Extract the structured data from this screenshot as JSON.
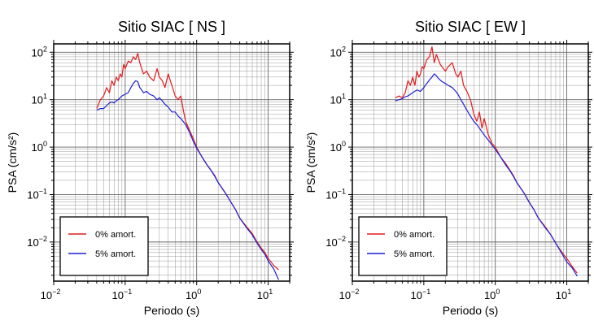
{
  "chart_data": [
    {
      "type": "line",
      "title": "Sitio SIAC [ NS ]",
      "xlabel": "Periodo (s)",
      "ylabel": "PSA (cm/s²)",
      "x_scale": "log",
      "y_scale": "log",
      "xlim": [
        0.01,
        20
      ],
      "ylim": [
        0.0015,
        150
      ],
      "grid": true,
      "legend_position": "bottom-left",
      "x_ticks": [
        {
          "base": "10",
          "exp": "−2"
        },
        {
          "base": "10",
          "exp": "−1"
        },
        {
          "base": "10",
          "exp": "0"
        },
        {
          "base": "10",
          "exp": "1"
        }
      ],
      "y_ticks": [
        {
          "base": "10",
          "exp": "−2"
        },
        {
          "base": "10",
          "exp": "−1"
        },
        {
          "base": "10",
          "exp": "0"
        },
        {
          "base": "10",
          "exp": "1"
        },
        {
          "base": "10",
          "exp": "2"
        }
      ],
      "series": [
        {
          "name": "0% amort.",
          "color": "#e41a1c",
          "x": [
            0.04,
            0.045,
            0.05,
            0.055,
            0.06,
            0.065,
            0.07,
            0.075,
            0.08,
            0.085,
            0.09,
            0.095,
            0.1,
            0.11,
            0.12,
            0.13,
            0.14,
            0.15,
            0.16,
            0.17,
            0.18,
            0.2,
            0.22,
            0.25,
            0.28,
            0.3,
            0.33,
            0.36,
            0.4,
            0.45,
            0.5,
            0.55,
            0.6,
            0.65,
            0.7,
            0.8,
            0.9,
            1.0,
            1.2,
            1.4,
            1.6,
            1.8,
            2.0,
            2.5,
            3.0,
            3.5,
            4.0,
            5.0,
            6.0,
            7.0,
            8.0,
            9.0,
            10.0,
            12.0,
            14.0
          ],
          "y": [
            6.5,
            10,
            12,
            18,
            14,
            25,
            20,
            30,
            25,
            35,
            30,
            55,
            45,
            65,
            60,
            80,
            70,
            95,
            60,
            45,
            35,
            40,
            30,
            25,
            45,
            30,
            25,
            18,
            35,
            20,
            12,
            10,
            12,
            6,
            3.5,
            2.2,
            1.5,
            1.0,
            0.6,
            0.42,
            0.32,
            0.25,
            0.18,
            0.11,
            0.07,
            0.048,
            0.032,
            0.021,
            0.015,
            0.01,
            0.0075,
            0.006,
            0.0045,
            0.0032,
            0.0026
          ]
        },
        {
          "name": "5% amort.",
          "color": "#1f1fd6",
          "x": [
            0.04,
            0.045,
            0.05,
            0.055,
            0.06,
            0.065,
            0.07,
            0.075,
            0.08,
            0.09,
            0.1,
            0.11,
            0.12,
            0.13,
            0.14,
            0.15,
            0.16,
            0.17,
            0.18,
            0.2,
            0.22,
            0.25,
            0.28,
            0.3,
            0.33,
            0.36,
            0.4,
            0.45,
            0.5,
            0.55,
            0.6,
            0.7,
            0.8,
            0.9,
            1.0,
            1.2,
            1.4,
            1.6,
            1.8,
            2.0,
            2.5,
            3.0,
            3.5,
            4.0,
            5.0,
            6.0,
            7.0,
            8.0,
            9.0,
            10.0,
            12.0,
            14.0
          ],
          "y": [
            6,
            6.5,
            6.5,
            7.5,
            8.5,
            9,
            8.5,
            9.5,
            10,
            12,
            13,
            14,
            18,
            22,
            25,
            24,
            18,
            16,
            14,
            15,
            13,
            12,
            10,
            11,
            9.5,
            8,
            7,
            5.5,
            5.5,
            4.5,
            4,
            3,
            2.0,
            1.3,
            0.95,
            0.6,
            0.42,
            0.32,
            0.24,
            0.18,
            0.11,
            0.07,
            0.048,
            0.032,
            0.02,
            0.014,
            0.0095,
            0.007,
            0.0055,
            0.004,
            0.0027,
            0.0016
          ]
        }
      ]
    },
    {
      "type": "line",
      "title": "Sitio SIAC [ EW ]",
      "xlabel": "Periodo (s)",
      "ylabel": "PSA (cm/s²)",
      "x_scale": "log",
      "y_scale": "log",
      "xlim": [
        0.01,
        20
      ],
      "ylim": [
        0.0015,
        150
      ],
      "grid": true,
      "legend_position": "bottom-left",
      "x_ticks": [
        {
          "base": "10",
          "exp": "−2"
        },
        {
          "base": "10",
          "exp": "−1"
        },
        {
          "base": "10",
          "exp": "0"
        },
        {
          "base": "10",
          "exp": "1"
        }
      ],
      "y_ticks": [
        {
          "base": "10",
          "exp": "−2"
        },
        {
          "base": "10",
          "exp": "−1"
        },
        {
          "base": "10",
          "exp": "0"
        },
        {
          "base": "10",
          "exp": "1"
        },
        {
          "base": "10",
          "exp": "2"
        }
      ],
      "series": [
        {
          "name": "0% amort.",
          "color": "#e41a1c",
          "x": [
            0.04,
            0.045,
            0.05,
            0.055,
            0.06,
            0.065,
            0.07,
            0.075,
            0.08,
            0.085,
            0.09,
            0.095,
            0.1,
            0.11,
            0.12,
            0.13,
            0.14,
            0.15,
            0.17,
            0.2,
            0.22,
            0.25,
            0.28,
            0.3,
            0.33,
            0.36,
            0.4,
            0.45,
            0.5,
            0.55,
            0.6,
            0.65,
            0.7,
            0.8,
            0.9,
            1.0,
            1.2,
            1.4,
            1.6,
            1.8,
            2.0,
            2.5,
            3.0,
            3.5,
            4.0,
            5.0,
            6.0,
            7.0,
            8.0,
            9.0,
            10.0,
            12.0,
            14.0
          ],
          "y": [
            11,
            12,
            11,
            14,
            25,
            20,
            30,
            20,
            40,
            30,
            35,
            50,
            45,
            70,
            80,
            130,
            60,
            90,
            55,
            40,
            50,
            60,
            35,
            30,
            40,
            20,
            15,
            10,
            5,
            3.5,
            5.5,
            2.5,
            4,
            1.8,
            1.2,
            1.0,
            0.6,
            0.45,
            0.33,
            0.25,
            0.18,
            0.11,
            0.068,
            0.047,
            0.032,
            0.021,
            0.014,
            0.0095,
            0.007,
            0.0055,
            0.0045,
            0.003,
            0.0022
          ]
        },
        {
          "name": "5% amort.",
          "color": "#1f1fd6",
          "x": [
            0.04,
            0.045,
            0.05,
            0.055,
            0.06,
            0.065,
            0.07,
            0.08,
            0.09,
            0.1,
            0.11,
            0.12,
            0.13,
            0.14,
            0.15,
            0.16,
            0.18,
            0.2,
            0.22,
            0.25,
            0.28,
            0.3,
            0.33,
            0.36,
            0.4,
            0.45,
            0.5,
            0.55,
            0.6,
            0.7,
            0.8,
            0.9,
            1.0,
            1.2,
            1.4,
            1.6,
            1.8,
            2.0,
            2.5,
            3.0,
            3.5,
            4.0,
            5.0,
            6.0,
            7.0,
            8.0,
            9.0,
            10.0,
            12.0,
            14.0
          ],
          "y": [
            9.5,
            10,
            10.5,
            11.5,
            12,
            13,
            14,
            16,
            15,
            18,
            22,
            26,
            30,
            35,
            32,
            28,
            24,
            22,
            20,
            18,
            15,
            13,
            10,
            8,
            6,
            4.5,
            3.5,
            3,
            2.5,
            1.8,
            1.4,
            1.1,
            0.9,
            0.6,
            0.42,
            0.32,
            0.24,
            0.18,
            0.11,
            0.068,
            0.047,
            0.032,
            0.02,
            0.014,
            0.0095,
            0.0068,
            0.005,
            0.0038,
            0.0028,
            0.0019
          ]
        }
      ]
    }
  ]
}
